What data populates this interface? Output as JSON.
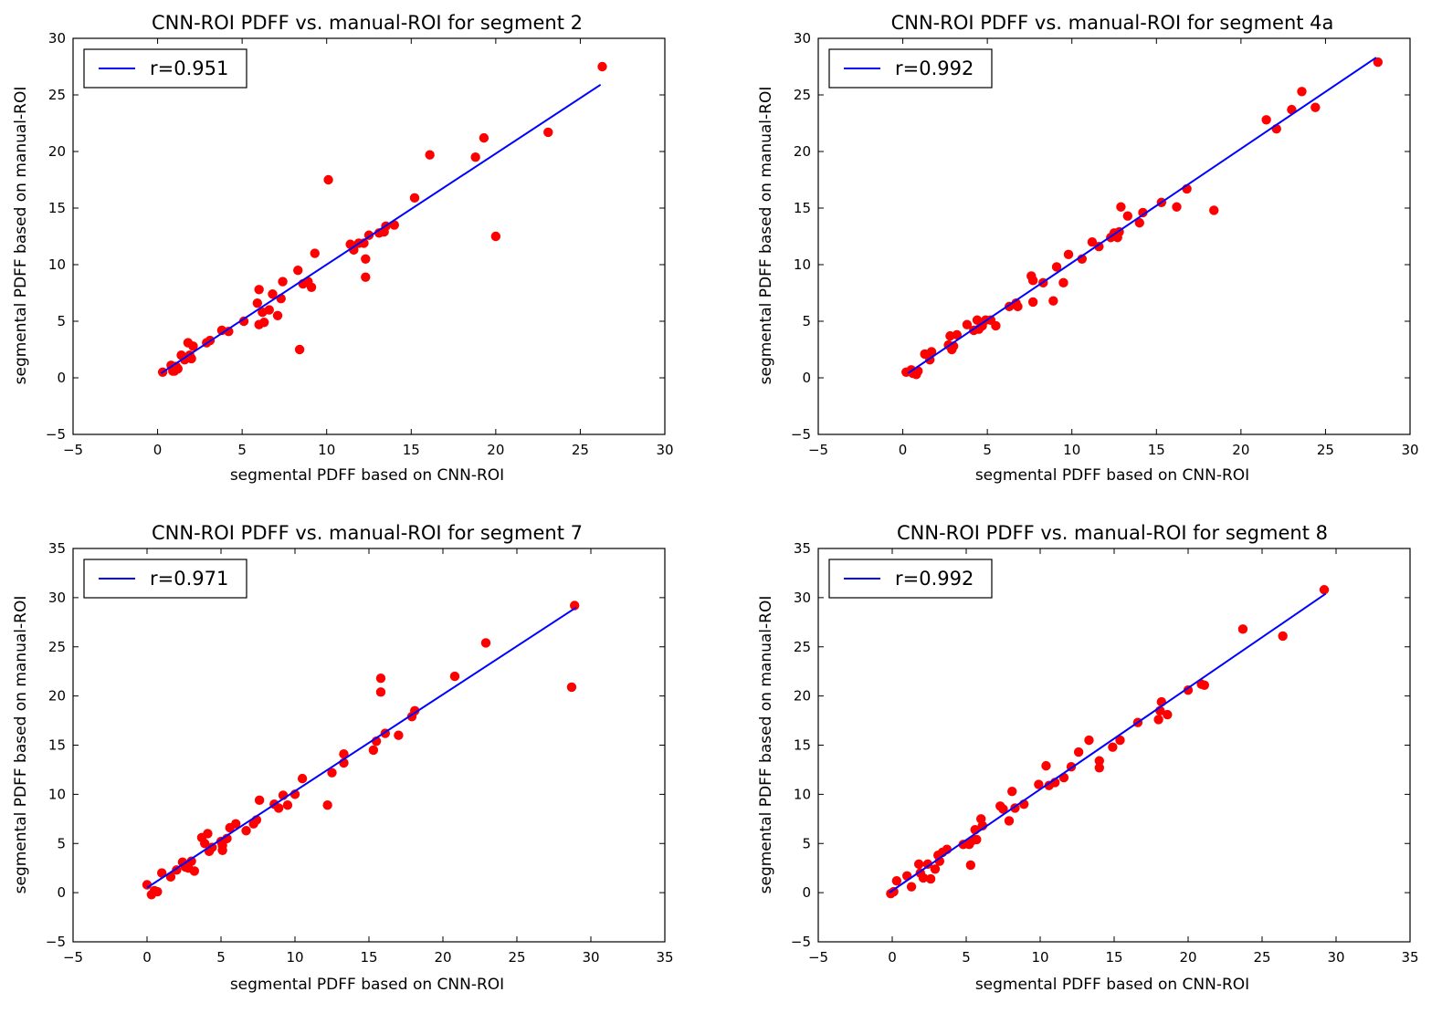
{
  "colors": {
    "points": "#ff0000",
    "fit_line": "#0000ff",
    "axes": "#000000",
    "background": "#ffffff"
  },
  "chart_data": [
    {
      "type": "scatter",
      "title": "CNN-ROI PDFF vs. manual-ROI for segment 2",
      "xlabel": "segmental PDFF based on CNN-ROI",
      "ylabel": "segmental PDFF based on manual-ROI",
      "xlim": [
        -5,
        30
      ],
      "ylim": [
        -5,
        30
      ],
      "xticks": [
        -5,
        0,
        5,
        10,
        15,
        20,
        25,
        30
      ],
      "yticks": [
        -5,
        0,
        5,
        10,
        15,
        20,
        25,
        30
      ],
      "grid": false,
      "legend": {
        "position": "top-left",
        "entries": [
          "r=0.951"
        ]
      },
      "fit_line": {
        "label": "r=0.951",
        "x": [
          0.2,
          26.2
        ],
        "y": [
          0.4,
          25.9
        ]
      },
      "points": [
        [
          0.3,
          0.5
        ],
        [
          0.8,
          1.1
        ],
        [
          0.9,
          0.6
        ],
        [
          1.0,
          0.6
        ],
        [
          1.1,
          1.0
        ],
        [
          1.2,
          0.8
        ],
        [
          1.4,
          2.0
        ],
        [
          1.6,
          1.6
        ],
        [
          1.8,
          3.1
        ],
        [
          1.9,
          2.0
        ],
        [
          2.0,
          1.7
        ],
        [
          2.1,
          2.8
        ],
        [
          2.9,
          3.1
        ],
        [
          3.1,
          3.3
        ],
        [
          3.8,
          4.2
        ],
        [
          4.2,
          4.1
        ],
        [
          5.1,
          5.0
        ],
        [
          5.9,
          6.6
        ],
        [
          6.0,
          7.8
        ],
        [
          6.0,
          4.7
        ],
        [
          6.2,
          5.8
        ],
        [
          6.3,
          4.9
        ],
        [
          6.6,
          6.0
        ],
        [
          6.8,
          7.4
        ],
        [
          7.1,
          5.5
        ],
        [
          7.3,
          7.0
        ],
        [
          7.4,
          8.5
        ],
        [
          8.3,
          9.5
        ],
        [
          8.4,
          2.5
        ],
        [
          8.6,
          8.3
        ],
        [
          8.9,
          8.5
        ],
        [
          9.1,
          8.0
        ],
        [
          9.3,
          11.0
        ],
        [
          10.1,
          17.5
        ],
        [
          11.4,
          11.8
        ],
        [
          11.6,
          11.3
        ],
        [
          11.9,
          11.9
        ],
        [
          12.2,
          11.9
        ],
        [
          12.3,
          8.9
        ],
        [
          12.3,
          10.5
        ],
        [
          12.5,
          12.6
        ],
        [
          13.1,
          12.8
        ],
        [
          13.4,
          12.9
        ],
        [
          13.5,
          13.4
        ],
        [
          14.0,
          13.5
        ],
        [
          15.2,
          15.9
        ],
        [
          16.1,
          19.7
        ],
        [
          18.8,
          19.5
        ],
        [
          19.3,
          21.2
        ],
        [
          20.0,
          12.5
        ],
        [
          23.1,
          21.7
        ],
        [
          26.3,
          27.5
        ]
      ]
    },
    {
      "type": "scatter",
      "title": "CNN-ROI PDFF vs. manual-ROI for segment 4a",
      "xlabel": "segmental PDFF based on CNN-ROI",
      "ylabel": "segmental PDFF based on manual-ROI",
      "xlim": [
        -5,
        30
      ],
      "ylim": [
        -5,
        30
      ],
      "xticks": [
        -5,
        0,
        5,
        10,
        15,
        20,
        25,
        30
      ],
      "yticks": [
        -5,
        0,
        5,
        10,
        15,
        20,
        25,
        30
      ],
      "grid": false,
      "legend": {
        "position": "top-left",
        "entries": [
          "r=0.992"
        ]
      },
      "fit_line": {
        "label": "r=0.992",
        "x": [
          0.3,
          28.0
        ],
        "y": [
          0.4,
          28.3
        ]
      },
      "points": [
        [
          0.2,
          0.5
        ],
        [
          0.5,
          0.7
        ],
        [
          0.6,
          0.4
        ],
        [
          0.8,
          0.3
        ],
        [
          0.9,
          0.6
        ],
        [
          1.3,
          2.1
        ],
        [
          1.6,
          1.6
        ],
        [
          1.7,
          2.3
        ],
        [
          2.7,
          2.9
        ],
        [
          2.8,
          3.7
        ],
        [
          2.9,
          2.5
        ],
        [
          3.0,
          2.8
        ],
        [
          3.2,
          3.8
        ],
        [
          3.8,
          4.7
        ],
        [
          4.2,
          4.2
        ],
        [
          4.4,
          5.1
        ],
        [
          4.5,
          4.3
        ],
        [
          4.7,
          4.6
        ],
        [
          4.9,
          5.1
        ],
        [
          5.2,
          5.1
        ],
        [
          5.5,
          4.6
        ],
        [
          6.3,
          6.3
        ],
        [
          6.7,
          6.6
        ],
        [
          6.8,
          6.3
        ],
        [
          7.6,
          9.0
        ],
        [
          7.7,
          8.6
        ],
        [
          7.7,
          6.7
        ],
        [
          8.3,
          8.4
        ],
        [
          8.9,
          6.8
        ],
        [
          9.1,
          9.8
        ],
        [
          9.5,
          8.4
        ],
        [
          9.8,
          10.9
        ],
        [
          10.6,
          10.5
        ],
        [
          11.2,
          12.0
        ],
        [
          11.6,
          11.6
        ],
        [
          12.3,
          12.4
        ],
        [
          12.5,
          12.8
        ],
        [
          12.7,
          12.4
        ],
        [
          12.8,
          12.9
        ],
        [
          12.9,
          15.1
        ],
        [
          13.3,
          14.3
        ],
        [
          14.0,
          13.7
        ],
        [
          14.2,
          14.6
        ],
        [
          15.3,
          15.5
        ],
        [
          16.2,
          15.1
        ],
        [
          16.8,
          16.7
        ],
        [
          18.4,
          14.8
        ],
        [
          21.5,
          22.8
        ],
        [
          22.1,
          22.0
        ],
        [
          23.0,
          23.7
        ],
        [
          23.6,
          25.3
        ],
        [
          24.4,
          23.9
        ],
        [
          28.1,
          27.9
        ]
      ]
    },
    {
      "type": "scatter",
      "title": "CNN-ROI PDFF vs. manual-ROI for segment 7",
      "xlabel": "segmental PDFF based on CNN-ROI",
      "ylabel": "segmental PDFF based on manual-ROI",
      "xlim": [
        -5,
        35
      ],
      "ylim": [
        -5,
        35
      ],
      "xticks": [
        -5,
        0,
        5,
        10,
        15,
        20,
        25,
        30,
        35
      ],
      "yticks": [
        -5,
        0,
        5,
        10,
        15,
        20,
        25,
        30,
        35
      ],
      "grid": false,
      "legend": {
        "position": "top-left",
        "entries": [
          "r=0.971"
        ]
      },
      "fit_line": {
        "label": "r=0.971",
        "x": [
          0.0,
          29.0
        ],
        "y": [
          0.5,
          29.0
        ]
      },
      "points": [
        [
          0.0,
          0.8
        ],
        [
          0.3,
          -0.2
        ],
        [
          0.5,
          0.2
        ],
        [
          0.7,
          0.1
        ],
        [
          1.0,
          2.0
        ],
        [
          1.6,
          1.6
        ],
        [
          2.0,
          2.3
        ],
        [
          2.4,
          3.1
        ],
        [
          2.6,
          2.6
        ],
        [
          2.8,
          2.5
        ],
        [
          3.0,
          3.2
        ],
        [
          3.2,
          2.2
        ],
        [
          3.7,
          5.6
        ],
        [
          3.9,
          5.0
        ],
        [
          4.1,
          6.0
        ],
        [
          4.2,
          4.2
        ],
        [
          4.4,
          4.6
        ],
        [
          5.0,
          5.2
        ],
        [
          5.1,
          4.3
        ],
        [
          5.1,
          4.8
        ],
        [
          5.4,
          5.5
        ],
        [
          5.6,
          6.6
        ],
        [
          6.0,
          7.0
        ],
        [
          6.7,
          6.3
        ],
        [
          7.2,
          7.0
        ],
        [
          7.4,
          7.4
        ],
        [
          7.6,
          9.4
        ],
        [
          8.6,
          9.0
        ],
        [
          8.9,
          8.6
        ],
        [
          9.2,
          9.9
        ],
        [
          9.5,
          8.9
        ],
        [
          10.0,
          10.0
        ],
        [
          10.5,
          11.6
        ],
        [
          12.2,
          8.9
        ],
        [
          12.5,
          12.2
        ],
        [
          13.3,
          13.2
        ],
        [
          13.3,
          14.1
        ],
        [
          15.3,
          14.5
        ],
        [
          15.5,
          15.4
        ],
        [
          15.8,
          21.8
        ],
        [
          15.8,
          20.4
        ],
        [
          16.1,
          16.2
        ],
        [
          17.0,
          16.0
        ],
        [
          17.9,
          17.9
        ],
        [
          18.1,
          18.5
        ],
        [
          20.8,
          22.0
        ],
        [
          22.9,
          25.4
        ],
        [
          28.7,
          20.9
        ],
        [
          28.9,
          29.2
        ]
      ]
    },
    {
      "type": "scatter",
      "title": "CNN-ROI PDFF vs. manual-ROI for segment 8",
      "xlabel": "segmental PDFF based on CNN-ROI",
      "ylabel": "segmental PDFF based on manual-ROI",
      "xlim": [
        -5,
        35
      ],
      "ylim": [
        -5,
        35
      ],
      "xticks": [
        -5,
        0,
        5,
        10,
        15,
        20,
        25,
        30,
        35
      ],
      "yticks": [
        -5,
        0,
        5,
        10,
        15,
        20,
        25,
        30,
        35
      ],
      "grid": false,
      "legend": {
        "position": "top-left",
        "entries": [
          "r=0.992"
        ]
      },
      "fit_line": {
        "label": "r=0.992",
        "x": [
          -0.2,
          29.3
        ],
        "y": [
          0.0,
          30.4
        ]
      },
      "points": [
        [
          -0.1,
          -0.1
        ],
        [
          0.1,
          0.1
        ],
        [
          0.3,
          1.2
        ],
        [
          1.0,
          1.7
        ],
        [
          1.3,
          0.6
        ],
        [
          1.8,
          2.9
        ],
        [
          1.9,
          2.0
        ],
        [
          2.1,
          1.5
        ],
        [
          2.4,
          2.9
        ],
        [
          2.6,
          1.4
        ],
        [
          2.9,
          2.4
        ],
        [
          3.1,
          3.8
        ],
        [
          3.2,
          3.2
        ],
        [
          3.4,
          4.1
        ],
        [
          3.7,
          4.4
        ],
        [
          4.8,
          4.9
        ],
        [
          5.2,
          4.9
        ],
        [
          5.3,
          2.8
        ],
        [
          5.4,
          5.3
        ],
        [
          5.6,
          6.4
        ],
        [
          5.7,
          5.4
        ],
        [
          6.0,
          7.5
        ],
        [
          6.1,
          6.8
        ],
        [
          7.3,
          8.8
        ],
        [
          7.5,
          8.5
        ],
        [
          7.9,
          7.3
        ],
        [
          8.1,
          10.3
        ],
        [
          8.3,
          8.6
        ],
        [
          8.9,
          9.0
        ],
        [
          9.9,
          11.0
        ],
        [
          10.4,
          12.9
        ],
        [
          10.6,
          10.9
        ],
        [
          11.0,
          11.2
        ],
        [
          11.6,
          11.7
        ],
        [
          12.1,
          12.8
        ],
        [
          12.6,
          14.3
        ],
        [
          13.3,
          15.5
        ],
        [
          14.0,
          12.7
        ],
        [
          14.0,
          13.4
        ],
        [
          14.9,
          14.8
        ],
        [
          15.4,
          15.5
        ],
        [
          16.6,
          17.3
        ],
        [
          18.0,
          17.6
        ],
        [
          18.1,
          18.5
        ],
        [
          18.2,
          19.4
        ],
        [
          18.6,
          18.1
        ],
        [
          20.0,
          20.6
        ],
        [
          20.9,
          21.2
        ],
        [
          21.1,
          21.1
        ],
        [
          23.7,
          26.8
        ],
        [
          26.4,
          26.1
        ],
        [
          29.2,
          30.8
        ]
      ]
    }
  ]
}
